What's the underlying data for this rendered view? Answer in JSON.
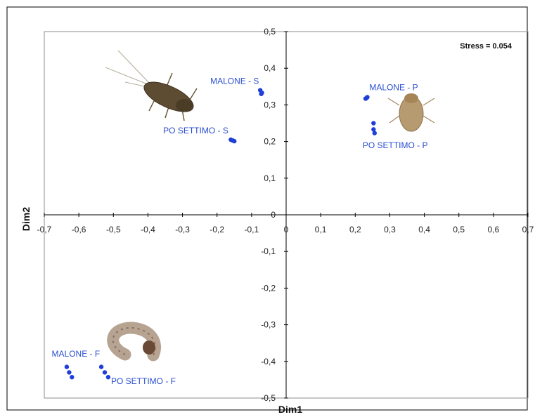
{
  "chart_data": {
    "type": "scatter",
    "title": "",
    "xlabel": "Dim1",
    "ylabel": "Dim2",
    "xlim": [
      -0.7,
      0.7
    ],
    "ylim": [
      -0.5,
      0.5
    ],
    "x_ticks": [
      "-0,7",
      "-0,6",
      "-0,5",
      "-0,4",
      "-0,3",
      "-0,2",
      "-0,1",
      "0",
      "0,1",
      "0,2",
      "0,3",
      "0,4",
      "0,5",
      "0,6",
      "0,7"
    ],
    "y_ticks": [
      "0,5",
      "0,4",
      "0,3",
      "0,2",
      "0,1",
      "0",
      "-0,1",
      "-0,2",
      "-0,3",
      "-0,4",
      "-0,5"
    ],
    "annotation": "Stress = 0.054",
    "grid": false,
    "point_color": "#1f3fd6",
    "label_color": "#2a4fd0",
    "groups": [
      {
        "label": "MALONE - S",
        "points": [
          [
            -0.075,
            0.34
          ],
          [
            -0.072,
            0.33
          ],
          [
            -0.07,
            0.333
          ]
        ]
      },
      {
        "label": "PO SETTIMO - S",
        "points": [
          [
            -0.16,
            0.205
          ],
          [
            -0.155,
            0.203
          ],
          [
            -0.15,
            0.201
          ]
        ]
      },
      {
        "label": "MALONE - P",
        "points": [
          [
            0.23,
            0.317
          ],
          [
            0.233,
            0.319
          ],
          [
            0.235,
            0.321
          ]
        ]
      },
      {
        "label": "PO SETTIMO - P",
        "points": [
          [
            0.253,
            0.25
          ],
          [
            0.253,
            0.233
          ],
          [
            0.256,
            0.223
          ]
        ]
      },
      {
        "label": "MALONE - F",
        "points": [
          [
            -0.635,
            -0.415
          ],
          [
            -0.628,
            -0.43
          ],
          [
            -0.62,
            -0.443
          ]
        ]
      },
      {
        "label": "PO SETTIMO - F",
        "points": [
          [
            -0.535,
            -0.415
          ],
          [
            -0.525,
            -0.43
          ],
          [
            -0.515,
            -0.443
          ]
        ]
      }
    ],
    "illustrations": [
      "stonefly-nymph-icon",
      "mayfly-nymph-icon",
      "caddisfly-larva-icon"
    ]
  }
}
